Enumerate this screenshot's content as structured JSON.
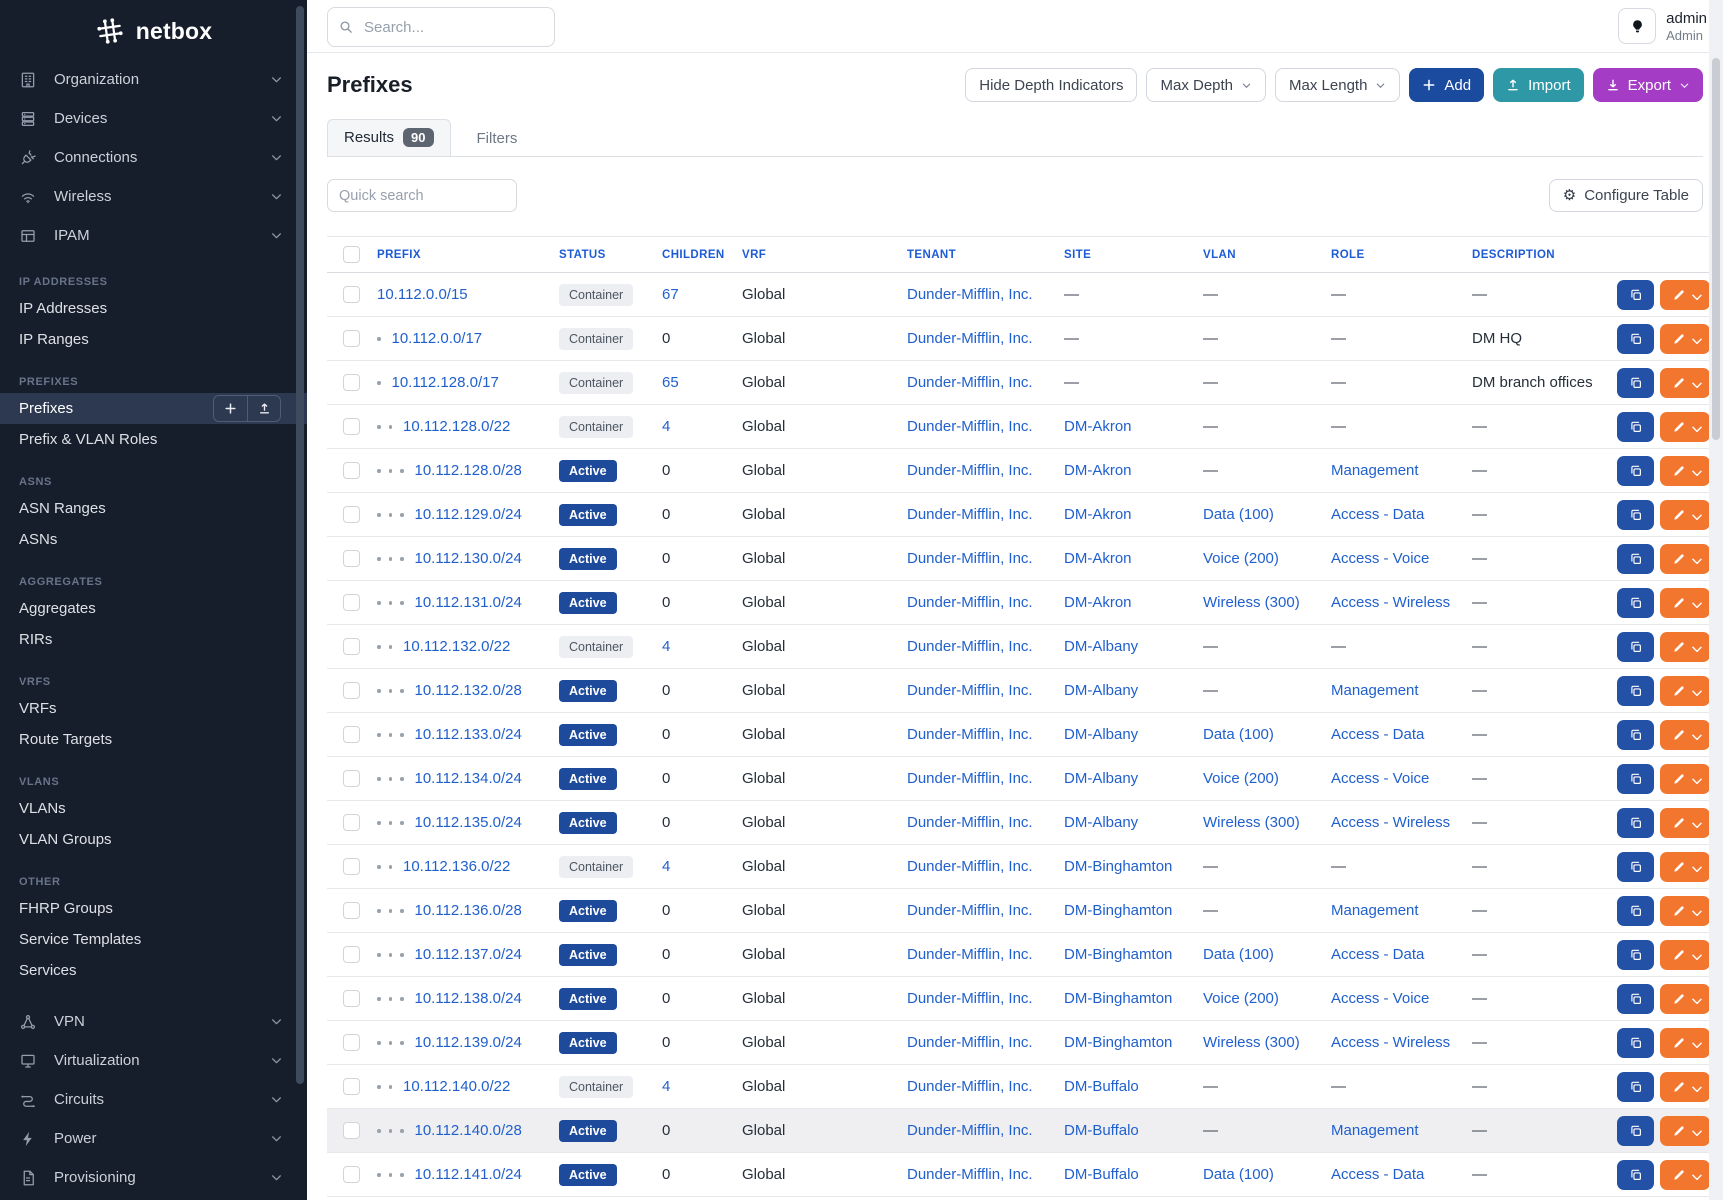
{
  "sidebar": {
    "logo_text": "netbox",
    "menus": [
      {
        "label": "Organization",
        "icon": "building-icon"
      },
      {
        "label": "Devices",
        "icon": "rack-icon"
      },
      {
        "label": "Connections",
        "icon": "plug-icon"
      },
      {
        "label": "Wireless",
        "icon": "wifi-icon"
      },
      {
        "label": "IPAM",
        "icon": "grid-icon"
      }
    ],
    "sections": [
      {
        "label": "IP ADDRESSES",
        "items": [
          {
            "label": "IP Addresses"
          },
          {
            "label": "IP Ranges"
          }
        ]
      },
      {
        "label": "PREFIXES",
        "items": [
          {
            "label": "Prefixes",
            "active": true,
            "actions": [
              "plus-icon",
              "upload-icon"
            ]
          },
          {
            "label": "Prefix & VLAN Roles"
          }
        ]
      },
      {
        "label": "ASNS",
        "items": [
          {
            "label": "ASN Ranges"
          },
          {
            "label": "ASNs"
          }
        ]
      },
      {
        "label": "AGGREGATES",
        "items": [
          {
            "label": "Aggregates"
          },
          {
            "label": "RIRs"
          }
        ]
      },
      {
        "label": "VRFS",
        "items": [
          {
            "label": "VRFs"
          },
          {
            "label": "Route Targets"
          }
        ]
      },
      {
        "label": "VLANS",
        "items": [
          {
            "label": "VLANs"
          },
          {
            "label": "VLAN Groups"
          }
        ]
      },
      {
        "label": "OTHER",
        "items": [
          {
            "label": "FHRP Groups"
          },
          {
            "label": "Service Templates"
          },
          {
            "label": "Services"
          }
        ]
      }
    ],
    "bottom_menus": [
      {
        "label": "VPN",
        "icon": "vpn-icon"
      },
      {
        "label": "Virtualization",
        "icon": "monitor-icon"
      },
      {
        "label": "Circuits",
        "icon": "circuits-icon"
      },
      {
        "label": "Power",
        "icon": "bolt-icon"
      },
      {
        "label": "Provisioning",
        "icon": "document-icon"
      }
    ]
  },
  "topbar": {
    "search_placeholder": "Search...",
    "user": {
      "name": "admin",
      "role": "Admin"
    }
  },
  "page": {
    "title": "Prefixes",
    "toolbar": {
      "hide_depth": "Hide Depth Indicators",
      "max_depth": "Max Depth",
      "max_length": "Max Length",
      "add": "Add",
      "import": "Import",
      "export": "Export"
    },
    "tabs": {
      "results": "Results",
      "count": "90",
      "filters": "Filters"
    },
    "quick_search_placeholder": "Quick search",
    "configure_table": "Configure Table"
  },
  "table": {
    "headers": [
      "PREFIX",
      "STATUS",
      "CHILDREN",
      "VRF",
      "TENANT",
      "SITE",
      "VLAN",
      "ROLE",
      "DESCRIPTION"
    ],
    "dash": "—",
    "rows": [
      {
        "prefix": "10.112.0.0/15",
        "depth": 0,
        "status": "Container",
        "children": "67",
        "children_link": true,
        "vrf": "Global",
        "tenant": "Dunder-Mifflin, Inc.",
        "site": null,
        "vlan": null,
        "role": null,
        "description": null,
        "highlighted": false
      },
      {
        "prefix": "10.112.0.0/17",
        "depth": 1,
        "status": "Container",
        "children": "0",
        "children_link": false,
        "vrf": "Global",
        "tenant": "Dunder-Mifflin, Inc.",
        "site": null,
        "vlan": null,
        "role": null,
        "description": "DM HQ",
        "highlighted": false
      },
      {
        "prefix": "10.112.128.0/17",
        "depth": 1,
        "status": "Container",
        "children": "65",
        "children_link": true,
        "vrf": "Global",
        "tenant": "Dunder-Mifflin, Inc.",
        "site": null,
        "vlan": null,
        "role": null,
        "description": "DM branch offices",
        "highlighted": false
      },
      {
        "prefix": "10.112.128.0/22",
        "depth": 2,
        "status": "Container",
        "children": "4",
        "children_link": true,
        "vrf": "Global",
        "tenant": "Dunder-Mifflin, Inc.",
        "site": "DM-Akron",
        "vlan": null,
        "role": null,
        "description": null,
        "highlighted": false
      },
      {
        "prefix": "10.112.128.0/28",
        "depth": 3,
        "status": "Active",
        "children": "0",
        "children_link": false,
        "vrf": "Global",
        "tenant": "Dunder-Mifflin, Inc.",
        "site": "DM-Akron",
        "vlan": null,
        "role": "Management",
        "description": null,
        "highlighted": false
      },
      {
        "prefix": "10.112.129.0/24",
        "depth": 3,
        "status": "Active",
        "children": "0",
        "children_link": false,
        "vrf": "Global",
        "tenant": "Dunder-Mifflin, Inc.",
        "site": "DM-Akron",
        "vlan": "Data (100)",
        "role": "Access - Data",
        "description": null,
        "highlighted": false
      },
      {
        "prefix": "10.112.130.0/24",
        "depth": 3,
        "status": "Active",
        "children": "0",
        "children_link": false,
        "vrf": "Global",
        "tenant": "Dunder-Mifflin, Inc.",
        "site": "DM-Akron",
        "vlan": "Voice (200)",
        "role": "Access - Voice",
        "description": null,
        "highlighted": false
      },
      {
        "prefix": "10.112.131.0/24",
        "depth": 3,
        "status": "Active",
        "children": "0",
        "children_link": false,
        "vrf": "Global",
        "tenant": "Dunder-Mifflin, Inc.",
        "site": "DM-Akron",
        "vlan": "Wireless (300)",
        "role": "Access - Wireless",
        "description": null,
        "highlighted": false
      },
      {
        "prefix": "10.112.132.0/22",
        "depth": 2,
        "status": "Container",
        "children": "4",
        "children_link": true,
        "vrf": "Global",
        "tenant": "Dunder-Mifflin, Inc.",
        "site": "DM-Albany",
        "vlan": null,
        "role": null,
        "description": null,
        "highlighted": false
      },
      {
        "prefix": "10.112.132.0/28",
        "depth": 3,
        "status": "Active",
        "children": "0",
        "children_link": false,
        "vrf": "Global",
        "tenant": "Dunder-Mifflin, Inc.",
        "site": "DM-Albany",
        "vlan": null,
        "role": "Management",
        "description": null,
        "highlighted": false
      },
      {
        "prefix": "10.112.133.0/24",
        "depth": 3,
        "status": "Active",
        "children": "0",
        "children_link": false,
        "vrf": "Global",
        "tenant": "Dunder-Mifflin, Inc.",
        "site": "DM-Albany",
        "vlan": "Data (100)",
        "role": "Access - Data",
        "description": null,
        "highlighted": false
      },
      {
        "prefix": "10.112.134.0/24",
        "depth": 3,
        "status": "Active",
        "children": "0",
        "children_link": false,
        "vrf": "Global",
        "tenant": "Dunder-Mifflin, Inc.",
        "site": "DM-Albany",
        "vlan": "Voice (200)",
        "role": "Access - Voice",
        "description": null,
        "highlighted": false
      },
      {
        "prefix": "10.112.135.0/24",
        "depth": 3,
        "status": "Active",
        "children": "0",
        "children_link": false,
        "vrf": "Global",
        "tenant": "Dunder-Mifflin, Inc.",
        "site": "DM-Albany",
        "vlan": "Wireless (300)",
        "role": "Access - Wireless",
        "description": null,
        "highlighted": false
      },
      {
        "prefix": "10.112.136.0/22",
        "depth": 2,
        "status": "Container",
        "children": "4",
        "children_link": true,
        "vrf": "Global",
        "tenant": "Dunder-Mifflin, Inc.",
        "site": "DM-Binghamton",
        "vlan": null,
        "role": null,
        "description": null,
        "highlighted": false
      },
      {
        "prefix": "10.112.136.0/28",
        "depth": 3,
        "status": "Active",
        "children": "0",
        "children_link": false,
        "vrf": "Global",
        "tenant": "Dunder-Mifflin, Inc.",
        "site": "DM-Binghamton",
        "vlan": null,
        "role": "Management",
        "description": null,
        "highlighted": false
      },
      {
        "prefix": "10.112.137.0/24",
        "depth": 3,
        "status": "Active",
        "children": "0",
        "children_link": false,
        "vrf": "Global",
        "tenant": "Dunder-Mifflin, Inc.",
        "site": "DM-Binghamton",
        "vlan": "Data (100)",
        "role": "Access - Data",
        "description": null,
        "highlighted": false
      },
      {
        "prefix": "10.112.138.0/24",
        "depth": 3,
        "status": "Active",
        "children": "0",
        "children_link": false,
        "vrf": "Global",
        "tenant": "Dunder-Mifflin, Inc.",
        "site": "DM-Binghamton",
        "vlan": "Voice (200)",
        "role": "Access - Voice",
        "description": null,
        "highlighted": false
      },
      {
        "prefix": "10.112.139.0/24",
        "depth": 3,
        "status": "Active",
        "children": "0",
        "children_link": false,
        "vrf": "Global",
        "tenant": "Dunder-Mifflin, Inc.",
        "site": "DM-Binghamton",
        "vlan": "Wireless (300)",
        "role": "Access - Wireless",
        "description": null,
        "highlighted": false
      },
      {
        "prefix": "10.112.140.0/22",
        "depth": 2,
        "status": "Container",
        "children": "4",
        "children_link": true,
        "vrf": "Global",
        "tenant": "Dunder-Mifflin, Inc.",
        "site": "DM-Buffalo",
        "vlan": null,
        "role": null,
        "description": null,
        "highlighted": false
      },
      {
        "prefix": "10.112.140.0/28",
        "depth": 3,
        "status": "Active",
        "children": "0",
        "children_link": false,
        "vrf": "Global",
        "tenant": "Dunder-Mifflin, Inc.",
        "site": "DM-Buffalo",
        "vlan": null,
        "role": "Management",
        "description": null,
        "highlighted": true
      },
      {
        "prefix": "10.112.141.0/24",
        "depth": 3,
        "status": "Active",
        "children": "0",
        "children_link": false,
        "vrf": "Global",
        "tenant": "Dunder-Mifflin, Inc.",
        "site": "DM-Buffalo",
        "vlan": "Data (100)",
        "role": "Access - Data",
        "description": null,
        "highlighted": false
      }
    ]
  },
  "colors": {
    "sidebar_bg": "#161d2b",
    "sidebar_active_bg": "#2c3950",
    "link_blue": "#2060ce",
    "header_blue": "#1d5bd6",
    "badge_active_bg": "#1e4a9c",
    "badge_container_bg": "#eceef1",
    "btn_add_bg": "#1b4b9f",
    "btn_import_bg": "#2e98a6",
    "btn_export_bg": "#a43cc6",
    "btn_copy_bg": "#2351a5",
    "btn_edit_bg": "#f2762d"
  }
}
